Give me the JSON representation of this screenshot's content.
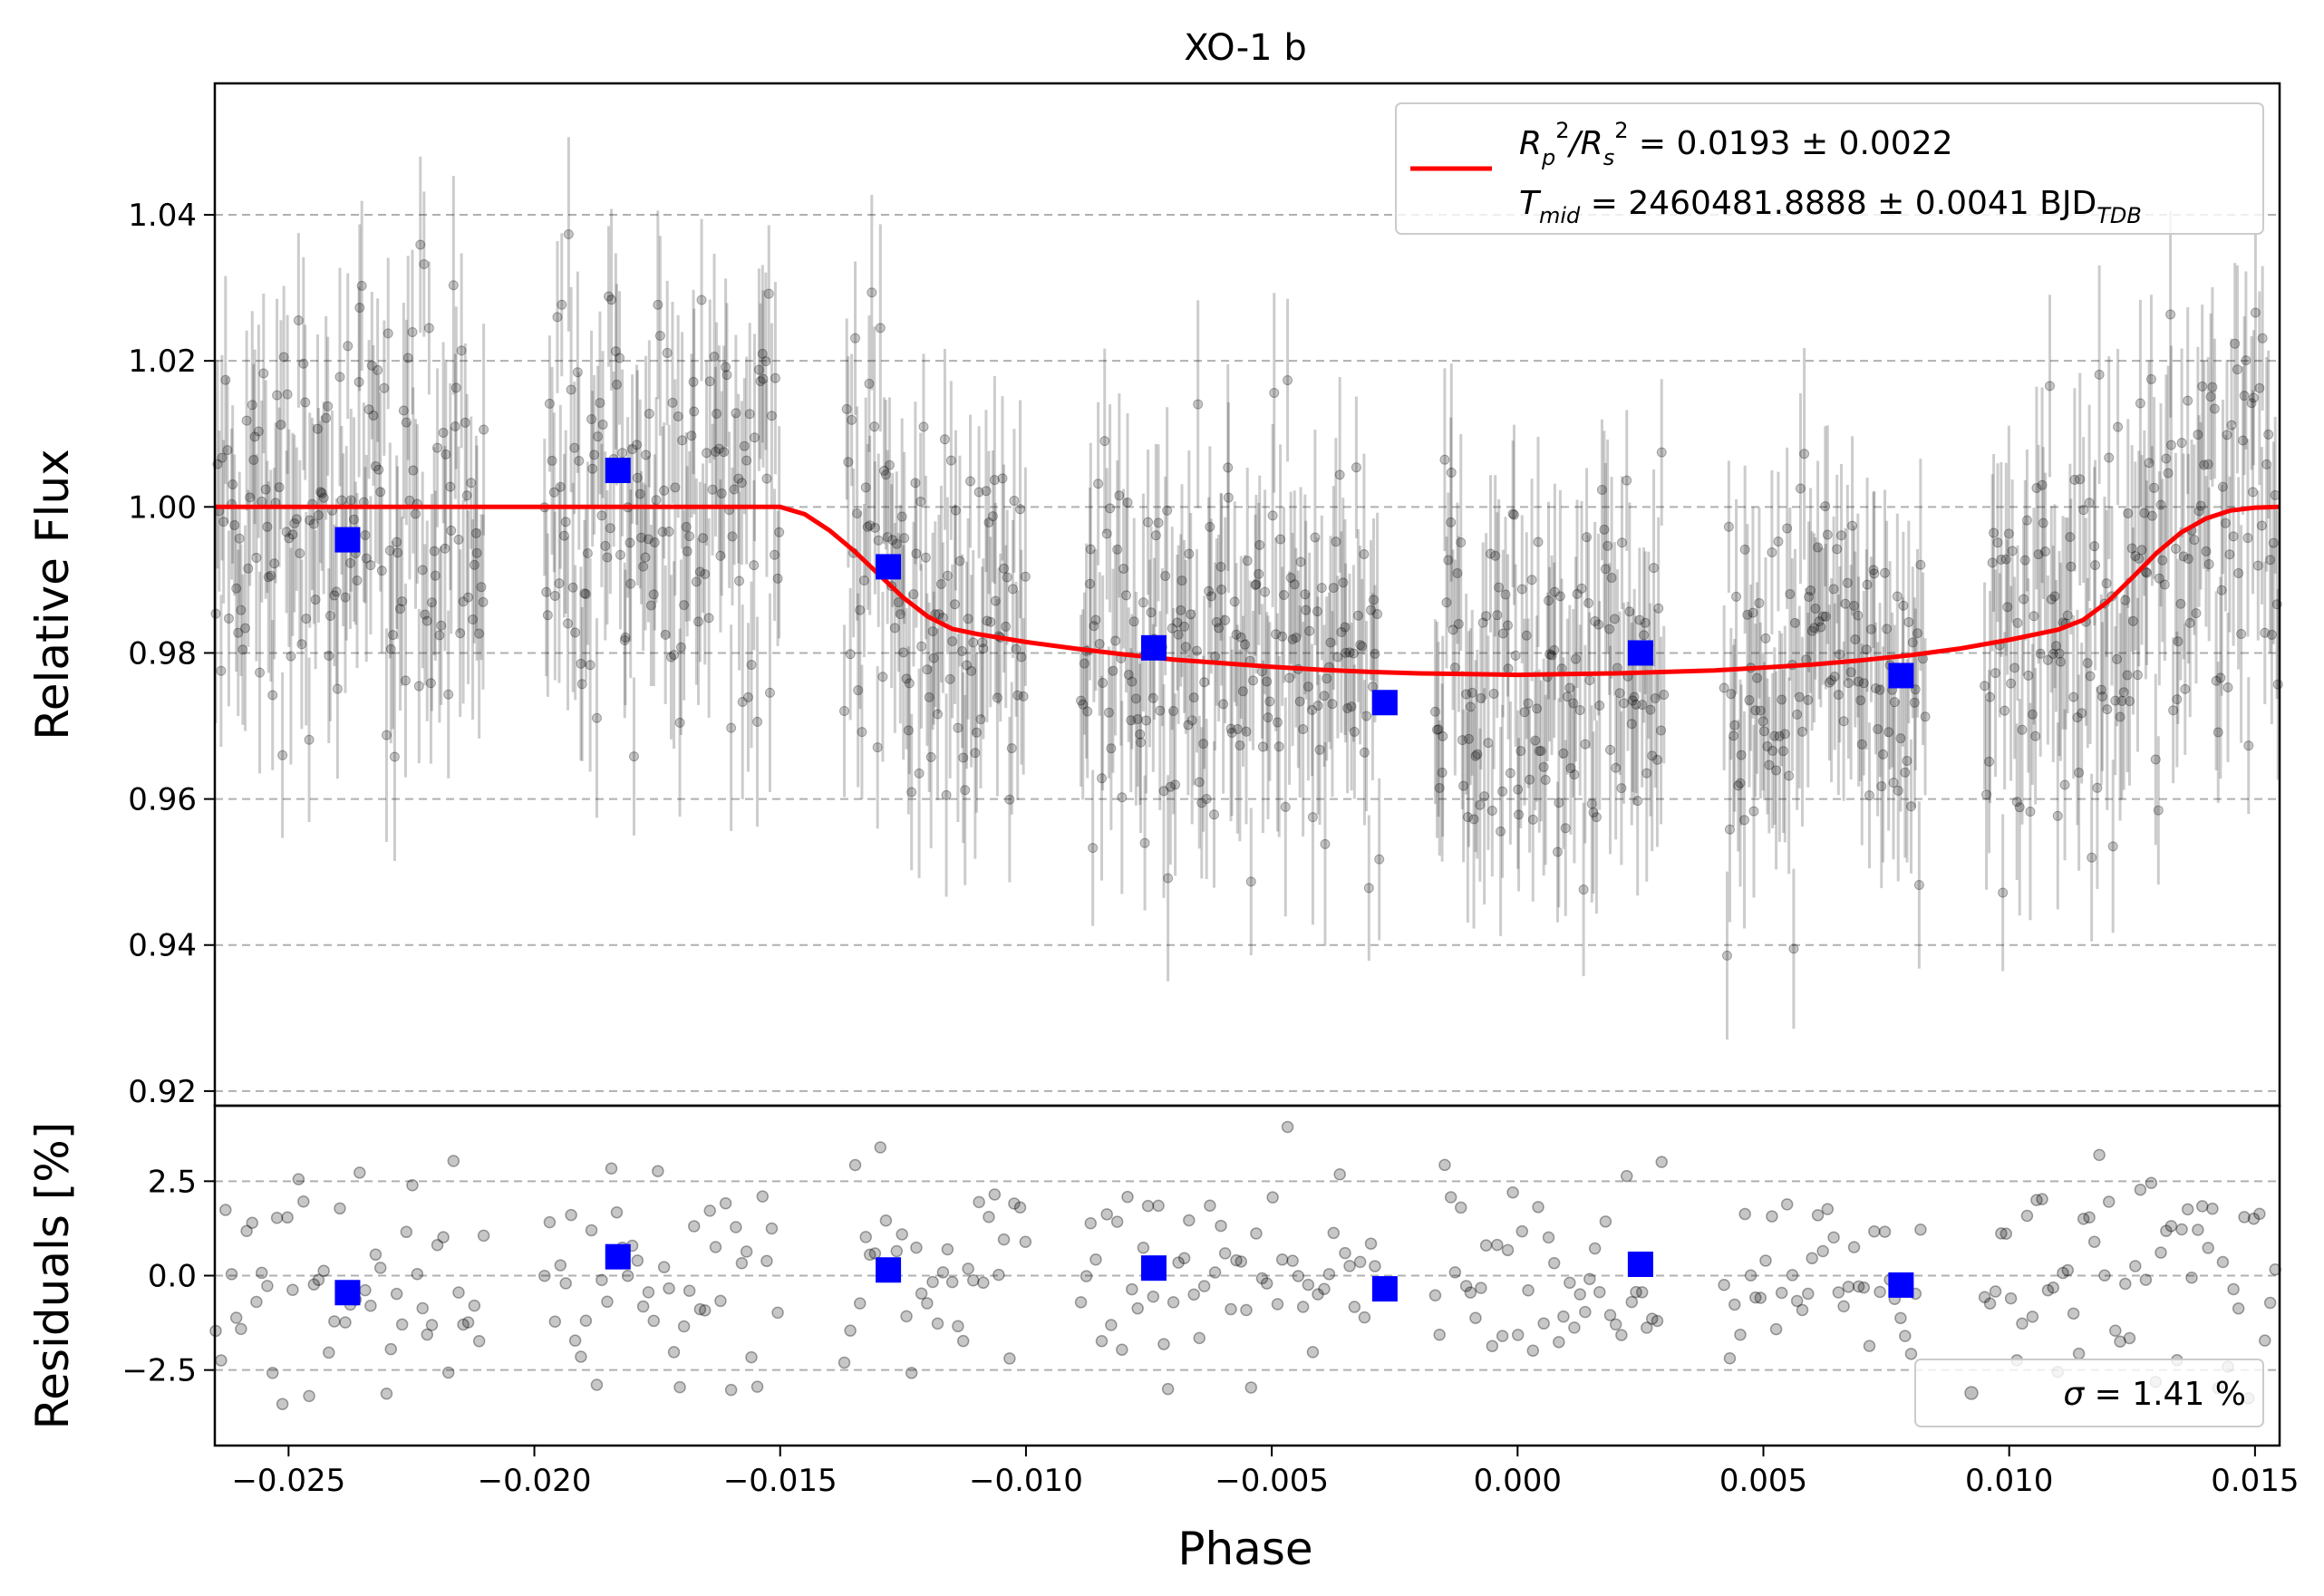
{
  "chart_data": {
    "type": "scatter",
    "title": "XO-1 b",
    "xlabel": "Phase",
    "xlim": [
      -0.0265,
      0.0155
    ],
    "xticks": [
      -0.025,
      -0.02,
      -0.015,
      -0.01,
      -0.005,
      0.0,
      0.005,
      0.01,
      0.015
    ],
    "xtick_labels": [
      "−0.025",
      "−0.020",
      "−0.015",
      "−0.010",
      "−0.005",
      "0.000",
      "0.005",
      "0.010",
      "0.015"
    ],
    "top_panel": {
      "ylabel": "Relative Flux",
      "ylim": [
        0.918,
        1.058
      ],
      "yticks": [
        0.92,
        0.94,
        0.96,
        0.98,
        1.0,
        1.02,
        1.04
      ],
      "ytick_labels": [
        "0.92",
        "0.94",
        "0.96",
        "0.98",
        "1.00",
        "1.02",
        "1.04"
      ],
      "grid": "y-dashed",
      "model_curve": {
        "color": "#ff0000",
        "x": [
          -0.0265,
          -0.015,
          -0.0145,
          -0.014,
          -0.0135,
          -0.013,
          -0.0125,
          -0.012,
          -0.0115,
          -0.011,
          -0.01,
          -0.009,
          -0.008,
          -0.007,
          -0.006,
          -0.005,
          -0.004,
          -0.003,
          -0.002,
          -0.001,
          0.0,
          0.001,
          0.002,
          0.003,
          0.004,
          0.005,
          0.006,
          0.007,
          0.008,
          0.009,
          0.01,
          0.011,
          0.0115,
          0.012,
          0.0125,
          0.013,
          0.0135,
          0.014,
          0.0145,
          0.015,
          0.0155
        ],
        "y": [
          1.0,
          1.0,
          0.999,
          0.9968,
          0.994,
          0.9908,
          0.9876,
          0.985,
          0.9833,
          0.9826,
          0.9815,
          0.9806,
          0.9798,
          0.9791,
          0.9786,
          0.9781,
          0.9777,
          0.9774,
          0.9772,
          0.9771,
          0.977,
          0.9771,
          0.9772,
          0.9774,
          0.9776,
          0.978,
          0.9784,
          0.979,
          0.9797,
          0.9806,
          0.9818,
          0.9832,
          0.9845,
          0.987,
          0.9903,
          0.9937,
          0.9965,
          0.9984,
          0.9995,
          0.9999,
          1.0
        ]
      },
      "binned": {
        "color": "#0000ff",
        "x": [
          -0.0238,
          -0.0183,
          -0.0128,
          -0.0074,
          -0.0027,
          0.0025,
          0.0078
        ],
        "y": [
          0.9955,
          1.005,
          0.9918,
          0.9807,
          0.9732,
          0.98,
          0.9769
        ]
      },
      "legend": {
        "position": "upper right",
        "line1_a": "R",
        "line1_b": "p",
        "line1_c": "2",
        "line1_d": "/R",
        "line1_e": "s",
        "line1_f": "2",
        "line1_g": " = 0.0193 ± 0.0022",
        "line2_a": "T",
        "line2_b": "mid",
        "line2_c": " = 2460481.8888 ± 0.0041 BJD",
        "line2_d": "TDB"
      }
    },
    "bottom_panel": {
      "ylabel": "Residuals [%]",
      "ylim": [
        -4.5,
        4.5
      ],
      "yticks": [
        -2.5,
        0.0,
        2.5
      ],
      "ytick_labels": [
        "−2.5",
        "0.0",
        "2.5"
      ],
      "grid": "y-dashed",
      "binned": {
        "color": "#0000ff",
        "x": [
          -0.0238,
          -0.0183,
          -0.0128,
          -0.0074,
          -0.0027,
          0.0025,
          0.0078
        ],
        "y": [
          -0.45,
          0.5,
          0.15,
          0.2,
          -0.35,
          0.3,
          -0.25
        ]
      },
      "legend": {
        "position": "lower right",
        "sigma_symbol": "σ",
        "sigma_text": " = 1.41 %"
      }
    },
    "raw_data_note_visual": {
      "groups": [
        {
          "x0": -0.0265,
          "x1": -0.021
        },
        {
          "x0": -0.0198,
          "x1": -0.015
        },
        {
          "x0": -0.0137,
          "x1": -0.01
        },
        {
          "x0": -0.0089,
          "x1": -0.0028
        },
        {
          "x0": -0.0017,
          "x1": 0.003
        },
        {
          "x0": 0.0042,
          "x1": 0.0083
        },
        {
          "x0": 0.0095,
          "x1": 0.0155
        }
      ],
      "scatter_sigma_percent": 1.41,
      "point_color": "#000000",
      "point_alpha": 0.22
    }
  }
}
